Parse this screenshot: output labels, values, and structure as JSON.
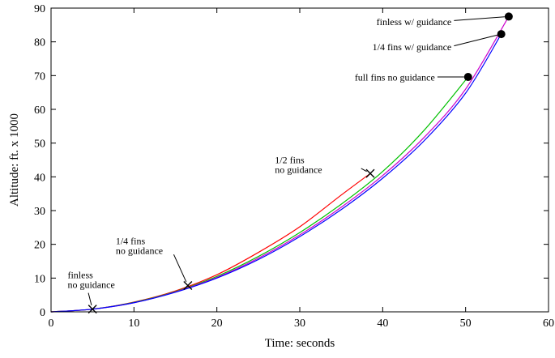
{
  "chart_data": {
    "type": "line",
    "xlabel": "Time: seconds",
    "ylabel": "Altitude: ft. x 1000",
    "xlim": [
      0,
      60
    ],
    "ylim": [
      0,
      90
    ],
    "xticks": [
      "0",
      "10",
      "20",
      "30",
      "40",
      "50",
      "60"
    ],
    "yticks": [
      "0",
      "10",
      "20",
      "30",
      "40",
      "50",
      "60",
      "70",
      "80",
      "90"
    ],
    "grid": false,
    "series": [
      {
        "color": "#ff0000",
        "x": [
          0,
          5,
          10,
          15,
          20,
          25,
          30,
          35,
          38.5
        ],
        "y": [
          0,
          0.8,
          2.9,
          6.2,
          11.0,
          17.6,
          25.2,
          34.6,
          41.0
        ]
      },
      {
        "color": "#00c000",
        "x": [
          0,
          5,
          10,
          15,
          20,
          25,
          30,
          35,
          40,
          45,
          50.3
        ],
        "y": [
          0,
          0.8,
          2.8,
          6.0,
          10.5,
          16.4,
          23.5,
          31.9,
          41.6,
          53.8,
          69.6
        ]
      },
      {
        "color": "#cc00cc",
        "x": [
          0,
          5,
          10,
          15,
          20,
          25,
          30,
          35,
          40,
          45,
          50,
          55.2
        ],
        "y": [
          0,
          0.8,
          2.7,
          5.9,
          10.2,
          15.9,
          22.8,
          31.0,
          40.4,
          51.7,
          66.0,
          87.5
        ]
      },
      {
        "color": "#0000ff",
        "x": [
          0,
          5,
          10,
          15,
          20,
          25,
          30,
          35,
          40,
          45,
          50,
          54.3
        ],
        "y": [
          0,
          0.8,
          2.7,
          5.8,
          10.0,
          15.5,
          22.3,
          30.3,
          39.6,
          50.7,
          64.8,
          82.3
        ]
      }
    ],
    "markers": [
      {
        "shape": "x",
        "x": 5.0,
        "y": 0.8
      },
      {
        "shape": "x",
        "x": 16.5,
        "y": 7.8
      },
      {
        "shape": "x",
        "x": 38.5,
        "y": 41.0
      },
      {
        "shape": "dot",
        "x": 50.3,
        "y": 69.6
      },
      {
        "shape": "dot",
        "x": 54.3,
        "y": 82.3
      },
      {
        "shape": "dot",
        "x": 55.2,
        "y": 87.5
      }
    ],
    "annotations": [
      {
        "lines": [
          "finless",
          "no guidance"
        ],
        "anchor": "start",
        "text_x": 2.0,
        "text_y": 10.0,
        "target_x": 5.0,
        "target_y": 0.8,
        "leader_from_x": 4.5,
        "leader_from_y": 5.6
      },
      {
        "lines": [
          "1/4 fins",
          "no guidance"
        ],
        "anchor": "start",
        "text_x": 7.8,
        "text_y": 20.0,
        "target_x": 16.5,
        "target_y": 7.8,
        "leader_from_x": 14.8,
        "leader_from_y": 17.0
      },
      {
        "lines": [
          "1/2 fins",
          "no guidance"
        ],
        "anchor": "start",
        "text_x": 27.0,
        "text_y": 44.0,
        "target_x": 38.5,
        "target_y": 41.0,
        "leader_from_x": 37.4,
        "leader_from_y": 42.5
      },
      {
        "lines": [
          "full fins no guidance"
        ],
        "anchor": "end",
        "text_x": 46.3,
        "text_y": 68.5,
        "target_x": 50.3,
        "target_y": 69.6,
        "leader_from_x": 46.6,
        "leader_from_y": 69.6
      },
      {
        "lines": [
          "1/4 fins w/ guidance"
        ],
        "anchor": "end",
        "text_x": 48.3,
        "text_y": 77.5,
        "target_x": 54.3,
        "target_y": 82.3,
        "leader_from_x": 48.6,
        "leader_from_y": 78.8
      },
      {
        "lines": [
          "finless w/ guidance"
        ],
        "anchor": "end",
        "text_x": 48.3,
        "text_y": 85.0,
        "target_x": 55.2,
        "target_y": 87.5,
        "leader_from_x": 48.6,
        "leader_from_y": 86.3
      }
    ]
  }
}
